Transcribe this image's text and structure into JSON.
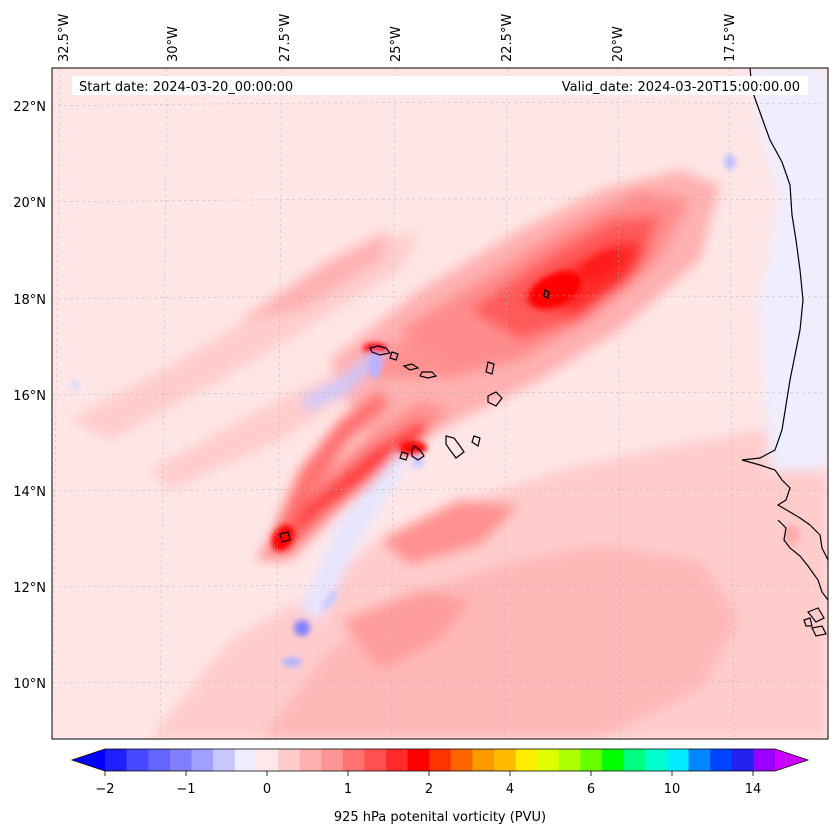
{
  "header": {
    "start_date": "Start date: 2024-03-20_00:00:00",
    "valid_date": "Valid_date: 2024-03-20T15:00:00.00"
  },
  "lon_ticks": [
    "32.5°W",
    "30°W",
    "27.5°W",
    "25°W",
    "22.5°W",
    "20°W",
    "17.5°W"
  ],
  "lat_ticks": [
    "22°N",
    "20°N",
    "18°N",
    "16°N",
    "14°N",
    "12°N",
    "10°N"
  ],
  "colorbar": {
    "label": "925 hPa potenital vorticity (PVU)",
    "tick_labels": [
      "−2",
      "−1",
      "0",
      "1",
      "2",
      "4",
      "6",
      "10",
      "14"
    ],
    "colors": [
      "#2020ff",
      "#4848ff",
      "#6464ff",
      "#8080ff",
      "#a0a0ff",
      "#c8c8ff",
      "#eeeeff",
      "#ffe8e8",
      "#ffcccc",
      "#ffb0b0",
      "#ff9494",
      "#ff7272",
      "#ff5050",
      "#ff2a2a",
      "#ff0000",
      "#ff3300",
      "#ff6600",
      "#ff9900",
      "#ffbb00",
      "#ffee00",
      "#ddff00",
      "#aaff00",
      "#66ff00",
      "#00ff00",
      "#00ff80",
      "#00ffcc",
      "#00eeff",
      "#0088ff",
      "#0044ff",
      "#2222ee",
      "#9900ff"
    ],
    "extend_low_color": "#0000ff",
    "extend_high_color": "#cc00ff"
  },
  "field_colors": {
    "background": "#ffe6e6",
    "light_pink": "#ffcccc",
    "pink": "#ffb0b0",
    "salmon": "#ff8c8c",
    "red_med": "#ff5a5a",
    "red": "#ff2020",
    "red_core": "#ff0000",
    "negative_light": "#e6e6ff",
    "negative": "#b4b4ff",
    "negative_strong": "#8080ff",
    "ocean_east": "#eeeeff"
  }
}
